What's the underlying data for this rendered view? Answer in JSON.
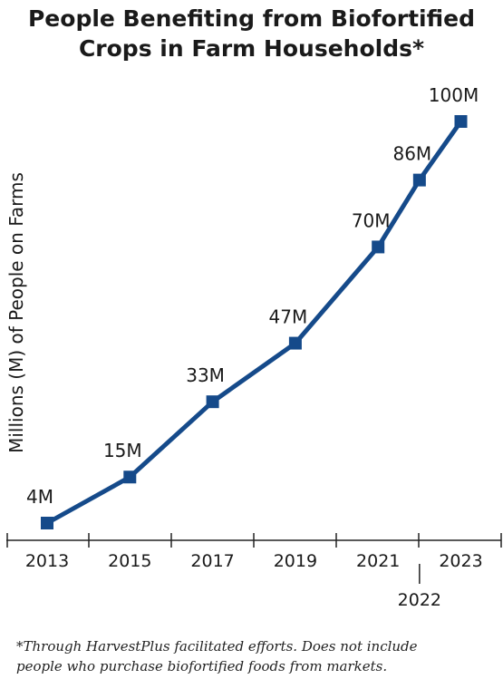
{
  "title_lines": [
    "People Benefiting from Biofortified",
    "Crops in Farm Households*"
  ],
  "footnote_lines": [
    "*Through HarvestPlus facilitated efforts. Does not include",
    "people who purchase biofortified foods from markets."
  ],
  "colors": {
    "line": "#154a8a",
    "axis": "#222222",
    "text": "#1a1a1a"
  },
  "chart_data": {
    "type": "line",
    "title": "People Benefiting from Biofortified Crops in Farm Households*",
    "ylabel": "Millions (M) of People on Farms",
    "xlabel": "",
    "x": [
      2013,
      2015,
      2017,
      2019,
      2021,
      2022,
      2023
    ],
    "values": [
      4,
      15,
      33,
      47,
      70,
      86,
      100
    ],
    "data_labels": [
      "4M",
      "15M",
      "33M",
      "47M",
      "70M",
      "86M",
      "100M"
    ],
    "x_tick_labels": [
      "2013",
      "2015",
      "2017",
      "2019",
      "2021",
      "2022",
      "2023"
    ],
    "xlim": [
      2012,
      2024
    ],
    "ylim": [
      0,
      100
    ],
    "grid": false,
    "marker": "square"
  }
}
